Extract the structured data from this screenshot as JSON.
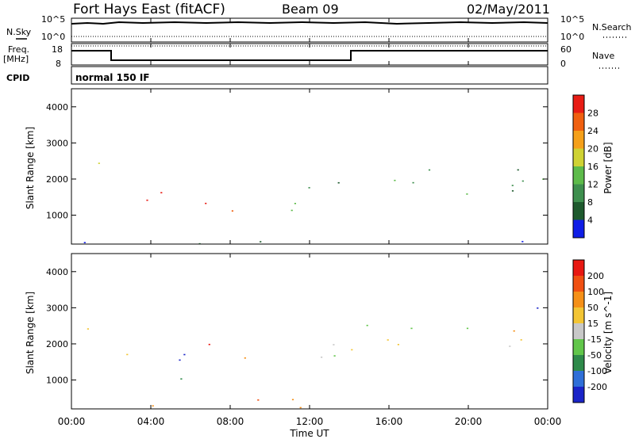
{
  "header": {
    "station": "Fort Hays East (fitACF)",
    "beam": "Beam 09",
    "date": "02/May/2011"
  },
  "noise_panel": {
    "left_label": "N.Sky",
    "right_label": "N.Search",
    "left_ticks": [
      "10^5",
      "10^0"
    ],
    "right_ticks": [
      "10^5",
      "10^0"
    ]
  },
  "freq_panel": {
    "left_label_1": "Freq.",
    "left_label_2": "[MHz]",
    "right_label": "Nave",
    "left_ticks": [
      "18",
      "8"
    ],
    "right_ticks": [
      "60",
      "0"
    ]
  },
  "cpid": {
    "label": "CPID",
    "value": "normal 150 IF"
  },
  "time_axis": {
    "label": "Time UT",
    "ticks": [
      "00:00",
      "04:00",
      "08:00",
      "12:00",
      "16:00",
      "20:00",
      "00:00"
    ]
  },
  "chart_data": [
    {
      "type": "heatmap",
      "name": "power",
      "ylabel": "Slant Range [km]",
      "ylim": [
        200,
        4500
      ],
      "yticks": [
        "4000",
        "3000",
        "2000",
        "1000"
      ],
      "colorbar_label": "Power [dB]",
      "colorbar_ticks": [
        "28",
        "24",
        "20",
        "16",
        "12",
        "8",
        "4"
      ],
      "colors": [
        "#0f1de6",
        "#1e5a2e",
        "#3e8f4e",
        "#5dbb4a",
        "#cfd233",
        "#f5a01a",
        "#f06010",
        "#e81c14"
      ],
      "blobs": [
        {
          "t0": 0.3,
          "t1": 1.9,
          "r0": 2300,
          "r1": 2800,
          "level": 0.5
        },
        {
          "t0": 2.0,
          "t1": 4.5,
          "r0": 1300,
          "r1": 1800,
          "level": 0.85
        },
        {
          "t0": 3.0,
          "t1": 7.5,
          "r0": 900,
          "r1": 1500,
          "level": 0.95
        },
        {
          "t0": 7.2,
          "t1": 8.3,
          "r0": 1000,
          "r1": 1700,
          "level": 0.8
        },
        {
          "t0": 10.2,
          "t1": 13.9,
          "r0": 900,
          "r1": 2100,
          "level": 0.3
        },
        {
          "t0": 14.0,
          "t1": 24.0,
          "r0": 1500,
          "r1": 2600,
          "level": 0.35
        },
        {
          "t0": 0.5,
          "t1": 24.0,
          "r0": 200,
          "r1": 400,
          "level": 0.2
        }
      ]
    },
    {
      "type": "heatmap",
      "name": "velocity",
      "ylabel": "Slant Range [km]",
      "ylim": [
        200,
        4500
      ],
      "yticks": [
        "4000",
        "3000",
        "2000",
        "1000"
      ],
      "colorbar_label": "Velocity [m s^-1]",
      "colorbar_ticks": [
        "200",
        "100",
        "50",
        "15",
        "-15",
        "-50",
        "-100",
        "-200"
      ],
      "colors": [
        "#1a24c8",
        "#2f6fd8",
        "#2e8a4a",
        "#61c64a",
        "#c8c8c8",
        "#f3c534",
        "#f59018",
        "#f05012",
        "#e81812"
      ],
      "blobs": [
        {
          "t0": 0.0,
          "t1": 1.9,
          "r0": 2300,
          "r1": 2900,
          "level": 0.5
        },
        {
          "t0": 2.0,
          "t1": 3.6,
          "r0": 1400,
          "r1": 2000,
          "level": 0.5
        },
        {
          "t0": 3.2,
          "t1": 7.2,
          "r0": 1300,
          "r1": 1900,
          "level": 0.05
        },
        {
          "t0": 3.5,
          "t1": 6.5,
          "r0": 900,
          "r1": 1400,
          "level": 0.3
        },
        {
          "t0": 5.0,
          "t1": 7.0,
          "r0": 1900,
          "r1": 2400,
          "level": 0.9
        },
        {
          "t0": 7.8,
          "t1": 8.8,
          "r0": 1200,
          "r1": 1900,
          "level": 0.92
        },
        {
          "t0": 10.0,
          "t1": 14.0,
          "r0": 1000,
          "r1": 2000,
          "level": 0.5
        },
        {
          "t0": 14.0,
          "t1": 24.0,
          "r0": 1500,
          "r1": 2600,
          "level": 0.5
        },
        {
          "t0": 4.0,
          "t1": 15.0,
          "r0": 200,
          "r1": 600,
          "level": 0.7
        },
        {
          "t0": 23.3,
          "t1": 24.0,
          "r0": 2400,
          "r1": 3300,
          "level": 0.02
        }
      ]
    }
  ]
}
